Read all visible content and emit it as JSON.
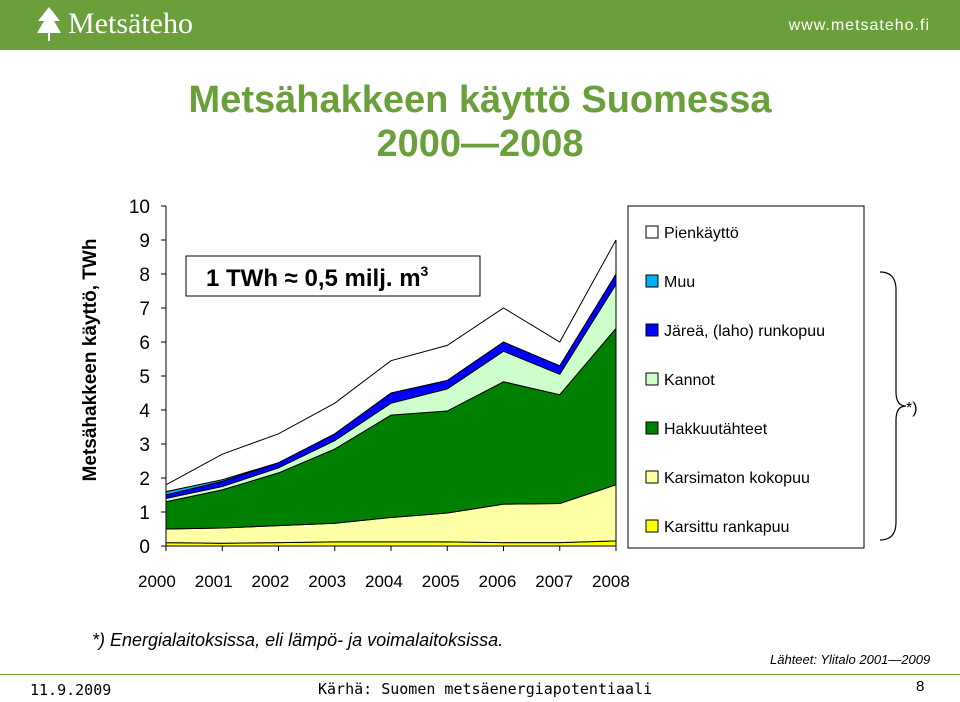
{
  "header": {
    "logo_text": "Metsäteho",
    "site_url": "www.metsateho.fi"
  },
  "title_line1": "Metsähakkeen käyttö Suomessa",
  "title_line2": "2000—2008",
  "footnote": "*) Energialaitoksissa, eli lämpö- ja voimalaitoksissa.",
  "sources": "Lähteet: Ylitalo 2001—2009",
  "footer": {
    "date": "11.9.2009",
    "title": "Kärhä: Suomen metsäenergiapotentiaali",
    "page": "8"
  },
  "colors": {
    "brand_green": "#6a9f3c"
  },
  "chart_data": {
    "type": "area",
    "stacked": true,
    "x": [
      2000,
      2001,
      2002,
      2003,
      2004,
      2005,
      2006,
      2007,
      2008
    ],
    "xlabel": "",
    "ylabel": "Metsähakkeen käyttö, TWh",
    "ylim": [
      0,
      10
    ],
    "yticks": [
      0,
      1,
      2,
      3,
      4,
      5,
      6,
      7,
      8,
      9,
      10
    ],
    "grid": false,
    "legend_position": "right",
    "annotation": "1 TWh ≈ 0,5 milj. m",
    "annotation_sup": "3",
    "bracket_label": "*)",
    "series": [
      {
        "name": "Karsittu rankapuu",
        "color": "#ffff00",
        "values": [
          0.1,
          0.08,
          0.1,
          0.12,
          0.12,
          0.12,
          0.1,
          0.1,
          0.15
        ]
      },
      {
        "name": "Karsimaton kokopuu",
        "color": "#ffffa6",
        "values": [
          0.4,
          0.45,
          0.5,
          0.55,
          0.72,
          0.85,
          1.13,
          1.15,
          1.65
        ]
      },
      {
        "name": "Hakkuutähteet",
        "color": "#008000",
        "values": [
          0.8,
          1.12,
          1.55,
          2.18,
          3.01,
          3.0,
          3.6,
          3.2,
          4.6
        ]
      },
      {
        "name": "Kannot",
        "color": "#ccffcc",
        "values": [
          0.1,
          0.1,
          0.15,
          0.25,
          0.35,
          0.65,
          0.9,
          0.6,
          1.3
        ]
      },
      {
        "name": "Järeä, (laho) runkopuu",
        "color": "#0000ff",
        "values": [
          0.1,
          0.15,
          0.15,
          0.2,
          0.3,
          0.25,
          0.27,
          0.25,
          0.3
        ]
      },
      {
        "name": "Muu",
        "color": "#00b0f0",
        "values": [
          0.1,
          0.05,
          0.0,
          0.0,
          0.0,
          0.0,
          0.0,
          0.0,
          0.0
        ]
      },
      {
        "name": "Pienkäyttö",
        "color": "#ffffff",
        "values": [
          0.2,
          0.75,
          0.85,
          0.9,
          0.95,
          1.03,
          1.0,
          0.7,
          1.0
        ]
      }
    ]
  }
}
